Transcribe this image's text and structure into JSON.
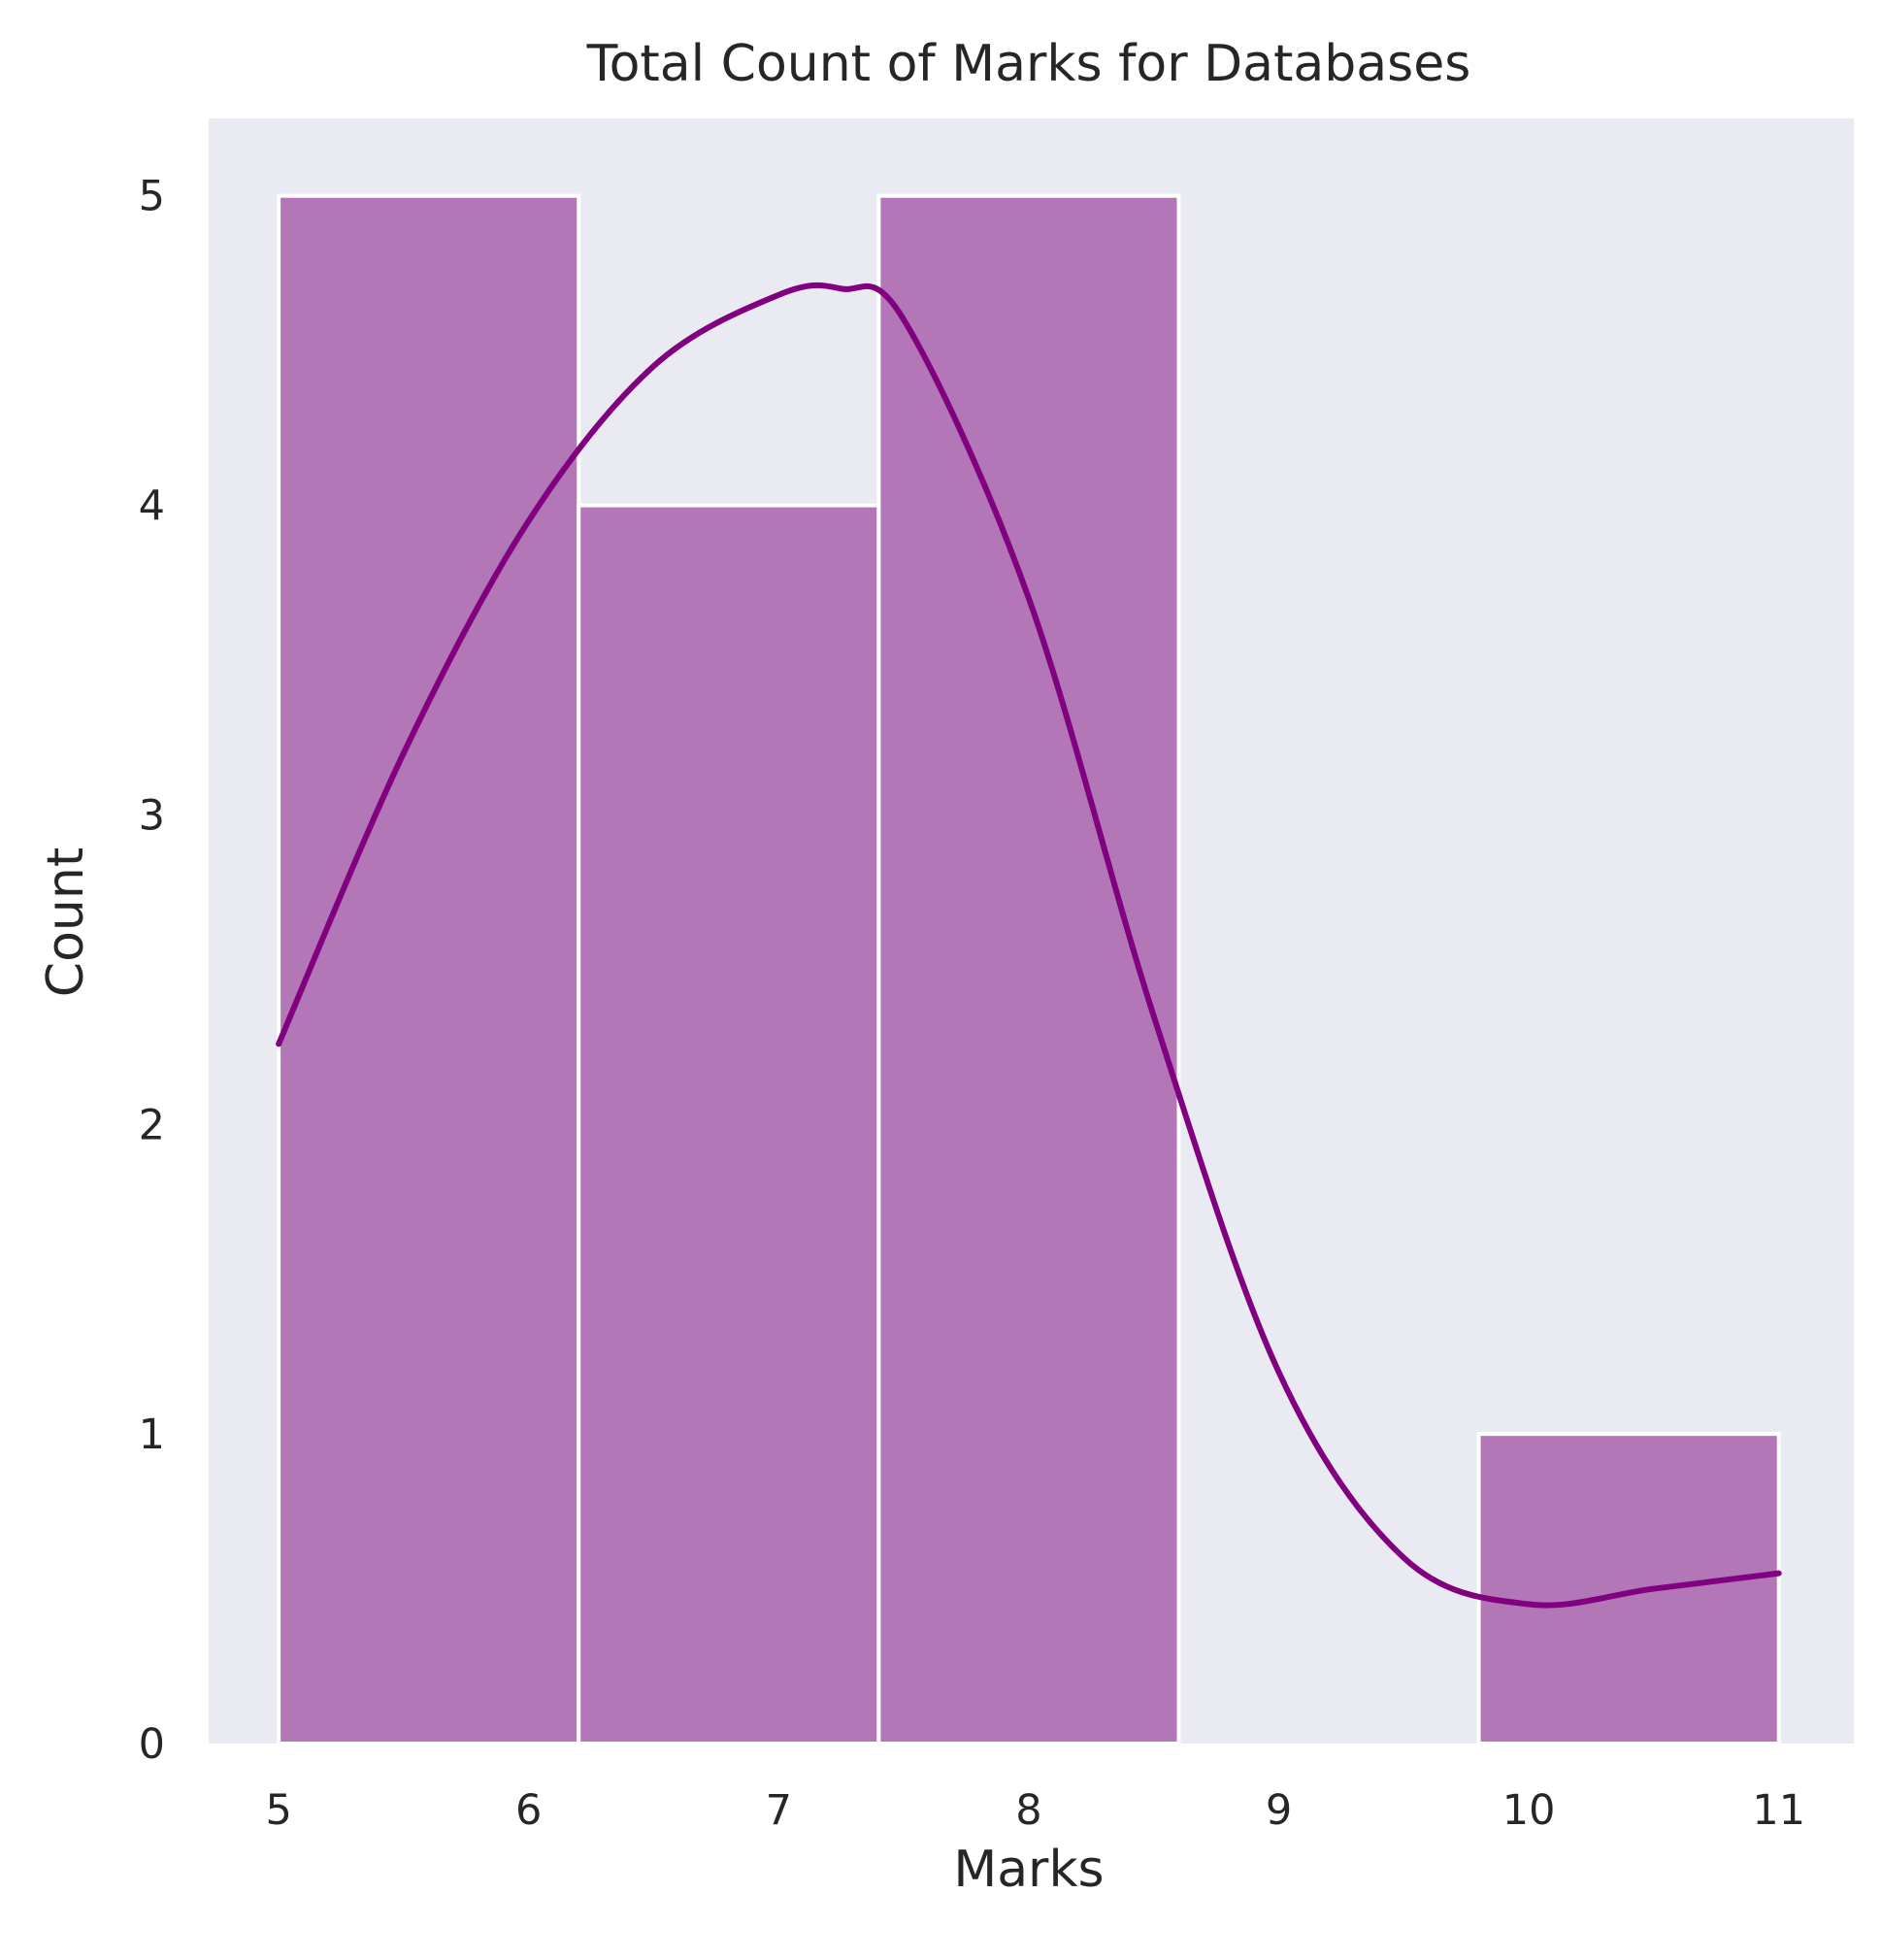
{
  "chart_data": {
    "type": "bar",
    "title": "Total Count of Marks for Databases",
    "xlabel": "Marks",
    "ylabel": "Count",
    "bins": [
      {
        "start": 5.0,
        "end": 6.2,
        "count": 5
      },
      {
        "start": 6.2,
        "end": 7.4,
        "count": 4
      },
      {
        "start": 7.4,
        "end": 8.6,
        "count": 5
      },
      {
        "start": 8.6,
        "end": 9.8,
        "count": 0
      },
      {
        "start": 9.8,
        "end": 11.0,
        "count": 1
      }
    ],
    "kde": {
      "x": [
        5.0,
        5.5,
        6.0,
        6.5,
        7.0,
        7.25,
        7.5,
        8.0,
        8.5,
        9.0,
        9.5,
        10.0,
        10.5,
        11.0
      ],
      "y": [
        2.26,
        3.2,
        3.95,
        4.45,
        4.68,
        4.7,
        4.6,
        3.7,
        2.35,
        1.2,
        0.6,
        0.45,
        0.5,
        0.55
      ]
    },
    "xticks": [
      5,
      6,
      7,
      8,
      9,
      10,
      11
    ],
    "yticks": [
      0,
      1,
      2,
      3,
      4,
      5
    ],
    "xlim": [
      4.72,
      11.3
    ],
    "ylim": [
      0,
      5.25
    ],
    "grid": false,
    "colors": {
      "bar_fill": "#b377b7",
      "bar_edge": "#ffffff",
      "kde_line": "#800080",
      "plot_background": "#eaeaf2"
    }
  }
}
